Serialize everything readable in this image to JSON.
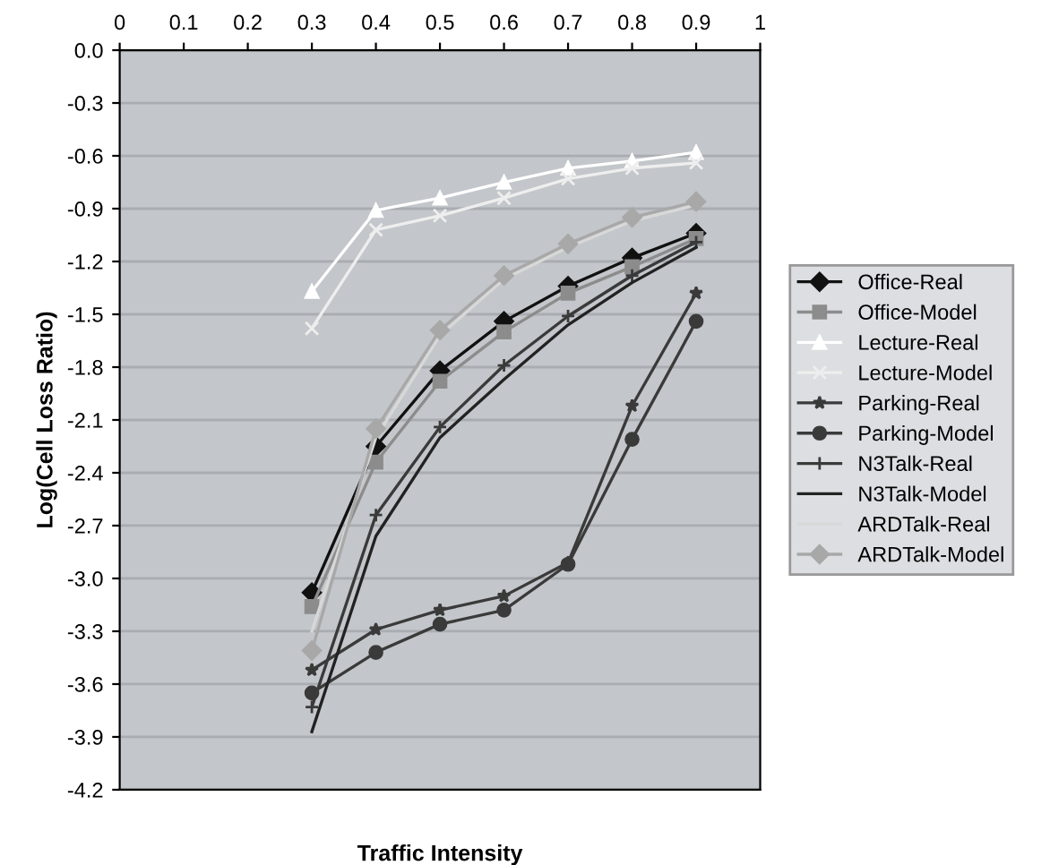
{
  "chart_data": {
    "type": "line",
    "xlabel": "Traffic Intensity",
    "ylabel": "Log(Cell Loss Ratio)",
    "x": [
      0.3,
      0.4,
      0.5,
      0.6,
      0.7,
      0.8,
      0.9
    ],
    "series": [
      {
        "name": "Office-Real",
        "color": "#111111",
        "marker": "diamond",
        "values": [
          -3.08,
          -2.25,
          -1.82,
          -1.54,
          -1.34,
          -1.18,
          -1.04
        ]
      },
      {
        "name": "Office-Model",
        "color": "#8c8c8c",
        "marker": "square",
        "values": [
          -3.16,
          -2.34,
          -1.88,
          -1.6,
          -1.38,
          -1.23,
          -1.07
        ]
      },
      {
        "name": "Lecture-Real",
        "color": "#ffffff",
        "marker": "triangle",
        "values": [
          -1.37,
          -0.91,
          -0.84,
          -0.75,
          -0.67,
          -0.63,
          -0.58
        ]
      },
      {
        "name": "Lecture-Model",
        "color": "#eeeeee",
        "marker": "cross",
        "values": [
          -1.58,
          -1.02,
          -0.94,
          -0.84,
          -0.73,
          -0.67,
          -0.64
        ]
      },
      {
        "name": "Parking-Real",
        "color": "#3a3a3a",
        "marker": "star",
        "values": [
          -3.52,
          -3.29,
          -3.18,
          -3.1,
          -2.91,
          -2.02,
          -1.38
        ]
      },
      {
        "name": "Parking-Model",
        "color": "#3a3a3a",
        "marker": "circle",
        "values": [
          -3.65,
          -3.42,
          -3.26,
          -3.18,
          -2.92,
          -2.21,
          -1.54
        ]
      },
      {
        "name": "N3Talk-Real",
        "color": "#3a3a3a",
        "marker": "plus",
        "values": [
          -3.73,
          -2.64,
          -2.14,
          -1.79,
          -1.51,
          -1.28,
          -1.09
        ]
      },
      {
        "name": "N3Talk-Model",
        "color": "#222222",
        "marker": "none",
        "values": [
          -3.87,
          -2.76,
          -2.2,
          -1.87,
          -1.56,
          -1.32,
          -1.12
        ]
      },
      {
        "name": "ARDTalk-Real",
        "color": "#d8d8d8",
        "marker": "none",
        "values": [
          -3.3,
          -2.2,
          -1.62,
          -1.3,
          -1.12,
          -0.97,
          -0.88
        ]
      },
      {
        "name": "ARDTalk-Model",
        "color": "#a8a8a8",
        "marker": "diamond",
        "values": [
          -3.41,
          -2.15,
          -1.59,
          -1.28,
          -1.1,
          -0.95,
          -0.86
        ]
      }
    ],
    "xlim": [
      0,
      1
    ],
    "xticks": [
      0,
      0.1,
      0.2,
      0.3,
      0.4,
      0.5,
      0.6,
      0.7,
      0.8,
      0.9,
      1
    ],
    "ylim": [
      -4.2,
      0
    ],
    "yticks": [
      {
        "value": 0,
        "label": "0.0"
      },
      {
        "value": -0.3,
        "label": "-0.3"
      },
      {
        "value": -0.6,
        "label": "-0.6"
      },
      {
        "value": -0.9,
        "label": "-0.9"
      },
      {
        "value": -1.2,
        "label": "-1.2"
      },
      {
        "value": -1.5,
        "label": "-1.5"
      },
      {
        "value": -1.8,
        "label": "-1.8"
      },
      {
        "value": -2.1,
        "label": "-2.1"
      },
      {
        "value": -2.4,
        "label": "-2.4"
      },
      {
        "value": -2.7,
        "label": "-2.7"
      },
      {
        "value": -3.0,
        "label": "-3.0"
      },
      {
        "value": -3.3,
        "label": "-3.3"
      },
      {
        "value": -3.6,
        "label": "-3.6"
      },
      {
        "value": -3.9,
        "label": "-3.9"
      },
      {
        "value": -4.2,
        "label": "-4.2"
      }
    ],
    "grid": "y",
    "legend": "right"
  }
}
